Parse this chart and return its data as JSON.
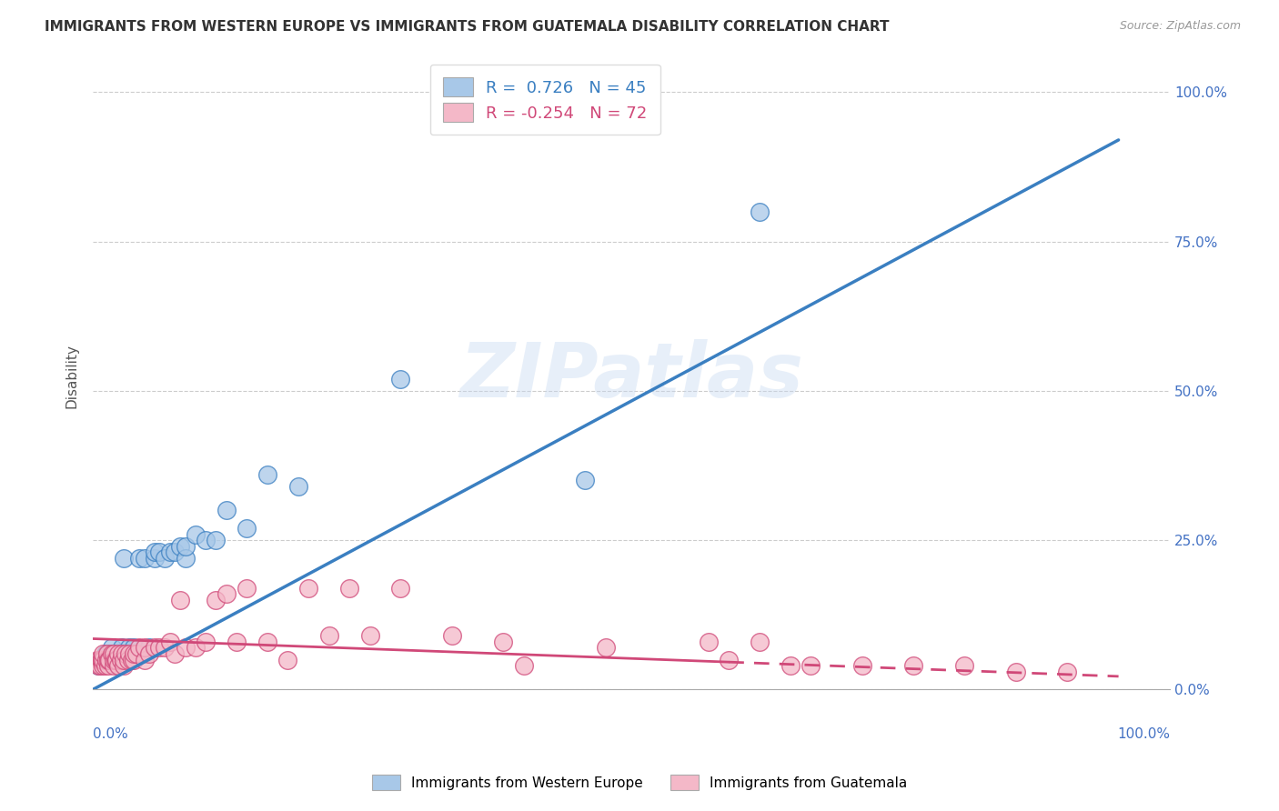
{
  "title": "IMMIGRANTS FROM WESTERN EUROPE VS IMMIGRANTS FROM GUATEMALA DISABILITY CORRELATION CHART",
  "source": "Source: ZipAtlas.com",
  "ylabel": "Disability",
  "watermark": "ZIPatlas",
  "blue_R": 0.726,
  "blue_N": 45,
  "pink_R": -0.254,
  "pink_N": 72,
  "blue_color": "#a8c8e8",
  "pink_color": "#f4b8c8",
  "blue_line_color": "#3a7fc1",
  "pink_line_color": "#d04878",
  "legend_blue_label": "Immigrants from Western Europe",
  "legend_pink_label": "Immigrants from Guatemala",
  "blue_points_x": [
    0.005,
    0.007,
    0.008,
    0.01,
    0.012,
    0.013,
    0.015,
    0.015,
    0.018,
    0.02,
    0.02,
    0.022,
    0.025,
    0.025,
    0.028,
    0.03,
    0.03,
    0.03,
    0.035,
    0.035,
    0.04,
    0.04,
    0.045,
    0.05,
    0.05,
    0.055,
    0.06,
    0.06,
    0.065,
    0.07,
    0.075,
    0.08,
    0.085,
    0.09,
    0.09,
    0.1,
    0.11,
    0.12,
    0.13,
    0.15,
    0.17,
    0.2,
    0.3,
    0.48,
    0.65
  ],
  "blue_points_y": [
    0.04,
    0.05,
    0.05,
    0.05,
    0.06,
    0.06,
    0.05,
    0.06,
    0.07,
    0.05,
    0.06,
    0.06,
    0.05,
    0.06,
    0.07,
    0.05,
    0.06,
    0.22,
    0.06,
    0.07,
    0.06,
    0.07,
    0.22,
    0.06,
    0.22,
    0.07,
    0.22,
    0.23,
    0.23,
    0.22,
    0.23,
    0.23,
    0.24,
    0.22,
    0.24,
    0.26,
    0.25,
    0.25,
    0.3,
    0.27,
    0.36,
    0.34,
    0.52,
    0.35,
    0.8
  ],
  "pink_points_x": [
    0.004,
    0.005,
    0.006,
    0.007,
    0.008,
    0.009,
    0.01,
    0.01,
    0.01,
    0.012,
    0.013,
    0.014,
    0.015,
    0.015,
    0.016,
    0.018,
    0.02,
    0.02,
    0.02,
    0.022,
    0.023,
    0.025,
    0.025,
    0.027,
    0.028,
    0.03,
    0.03,
    0.032,
    0.034,
    0.035,
    0.038,
    0.04,
    0.04,
    0.042,
    0.045,
    0.05,
    0.05,
    0.055,
    0.06,
    0.065,
    0.07,
    0.075,
    0.08,
    0.085,
    0.09,
    0.1,
    0.11,
    0.12,
    0.13,
    0.14,
    0.15,
    0.17,
    0.19,
    0.21,
    0.23,
    0.25,
    0.27,
    0.3,
    0.35,
    0.4,
    0.42,
    0.5,
    0.6,
    0.62,
    0.65,
    0.68,
    0.7,
    0.75,
    0.8,
    0.85,
    0.9,
    0.95
  ],
  "pink_points_y": [
    0.05,
    0.04,
    0.05,
    0.04,
    0.05,
    0.05,
    0.04,
    0.05,
    0.06,
    0.04,
    0.05,
    0.06,
    0.04,
    0.05,
    0.05,
    0.06,
    0.04,
    0.05,
    0.06,
    0.05,
    0.05,
    0.04,
    0.06,
    0.05,
    0.06,
    0.04,
    0.05,
    0.06,
    0.05,
    0.06,
    0.05,
    0.05,
    0.06,
    0.06,
    0.07,
    0.05,
    0.07,
    0.06,
    0.07,
    0.07,
    0.07,
    0.08,
    0.06,
    0.15,
    0.07,
    0.07,
    0.08,
    0.15,
    0.16,
    0.08,
    0.17,
    0.08,
    0.05,
    0.17,
    0.09,
    0.17,
    0.09,
    0.17,
    0.09,
    0.08,
    0.04,
    0.07,
    0.08,
    0.05,
    0.08,
    0.04,
    0.04,
    0.04,
    0.04,
    0.04,
    0.03,
    0.03
  ],
  "blue_line_x0": 0.0,
  "blue_line_y0": 0.0,
  "blue_line_x1": 1.0,
  "blue_line_y1": 0.92,
  "pink_line_x0": 0.0,
  "pink_line_y0": 0.085,
  "pink_line_x1": 1.0,
  "pink_line_y1": 0.022,
  "pink_solid_cutoff": 0.62,
  "ytick_labels": [
    "0.0%",
    "25.0%",
    "50.0%",
    "75.0%",
    "100.0%"
  ],
  "ytick_values": [
    0.0,
    0.25,
    0.5,
    0.75,
    1.0
  ],
  "xlim": [
    0.0,
    1.05
  ],
  "ylim": [
    0.0,
    1.05
  ],
  "background_color": "#ffffff",
  "grid_color": "#cccccc"
}
